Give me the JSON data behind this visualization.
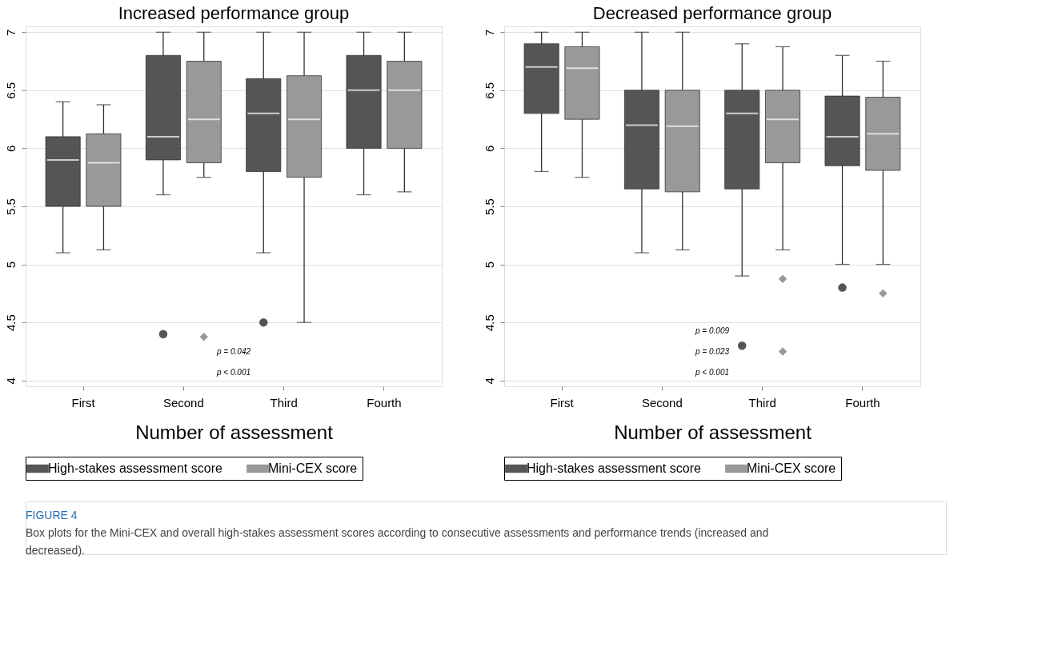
{
  "chart_data": [
    {
      "type": "box",
      "title": "Increased performance group",
      "xlabel": "Number of assessment",
      "categories": [
        "First",
        "Second",
        "Third",
        "Fourth"
      ],
      "ylim": [
        3.95,
        7.05
      ],
      "yticks": [
        4,
        4.5,
        5,
        5.5,
        6,
        6.5,
        7
      ],
      "grid": "y",
      "legend": "bottom",
      "series": [
        {
          "name": "High-stakes assessment score",
          "color": "#555555",
          "marker": "circle",
          "boxes": [
            {
              "low": 5.1,
              "q1": 5.5,
              "median": 5.9,
              "q3": 6.1,
              "high": 6.4
            },
            {
              "low": 5.6,
              "q1": 5.9,
              "median": 6.1,
              "q3": 6.8,
              "high": 7,
              "outliers": [
                4.4
              ]
            },
            {
              "low": 5.1,
              "q1": 5.8,
              "median": 6.3,
              "q3": 6.6,
              "high": 7,
              "outliers": [
                4.5
              ]
            },
            {
              "low": 5.6,
              "q1": 6.0,
              "median": 6.5,
              "q3": 6.8,
              "high": 7
            }
          ]
        },
        {
          "name": "Mini-CEX score",
          "color": "#999999",
          "marker": "diamond",
          "boxes": [
            {
              "low": 5.125,
              "q1": 5.5,
              "median": 5.875,
              "q3": 6.125,
              "high": 6.375
            },
            {
              "low": 5.75,
              "q1": 5.875,
              "median": 6.25,
              "q3": 6.75,
              "high": 7,
              "outliers": [
                4.375
              ]
            },
            {
              "low": 4.5,
              "q1": 5.75,
              "median": 6.25,
              "q3": 6.625,
              "high": 7
            },
            {
              "low": 5.625,
              "q1": 6.0,
              "median": 6.5,
              "q3": 6.75,
              "high": 7
            }
          ]
        }
      ],
      "annotations": [
        "p = 0.042",
        "p < 0.001"
      ]
    },
    {
      "type": "box",
      "title": "Decreased performance group",
      "xlabel": "Number of assessment",
      "categories": [
        "First",
        "Second",
        "Third",
        "Fourth"
      ],
      "ylim": [
        3.95,
        7.05
      ],
      "yticks": [
        4,
        4.5,
        5,
        5.5,
        6,
        6.5,
        7
      ],
      "grid": "y",
      "legend": "bottom",
      "series": [
        {
          "name": "High-stakes assessment score",
          "color": "#555555",
          "marker": "circle",
          "boxes": [
            {
              "low": 5.8,
              "q1": 6.3,
              "median": 6.7,
              "q3": 6.9,
              "high": 7
            },
            {
              "low": 5.1,
              "q1": 5.65,
              "median": 6.2,
              "q3": 6.5,
              "high": 7
            },
            {
              "low": 4.9,
              "q1": 5.65,
              "median": 6.3,
              "q3": 6.5,
              "high": 6.9,
              "outliers": [
                4.3
              ]
            },
            {
              "low": 5.0,
              "q1": 5.85,
              "median": 6.1,
              "q3": 6.45,
              "high": 6.8,
              "outliers": [
                4.8
              ]
            }
          ]
        },
        {
          "name": "Mini-CEX score",
          "color": "#999999",
          "marker": "diamond",
          "boxes": [
            {
              "low": 5.75,
              "q1": 6.25,
              "median": 6.69,
              "q3": 6.875,
              "high": 7
            },
            {
              "low": 5.125,
              "q1": 5.625,
              "median": 6.19,
              "q3": 6.5,
              "high": 7
            },
            {
              "low": 5.125,
              "q1": 5.875,
              "median": 6.25,
              "q3": 6.5,
              "high": 6.875,
              "outliers": [
                4.875,
                4.25
              ]
            },
            {
              "low": 5.0,
              "q1": 5.81,
              "median": 6.125,
              "q3": 6.44,
              "high": 6.75,
              "outliers": [
                4.75
              ]
            }
          ]
        }
      ],
      "annotations": [
        "p = 0.009",
        "p = 0.023",
        "p < 0.001",
        "FIGURE 4",
        "Box plots for the Mini-CEX and overall high-stakes assessment scores according to consecutive assessments and performance trends (increased and decreased)."
      ]
    }
  ]
}
